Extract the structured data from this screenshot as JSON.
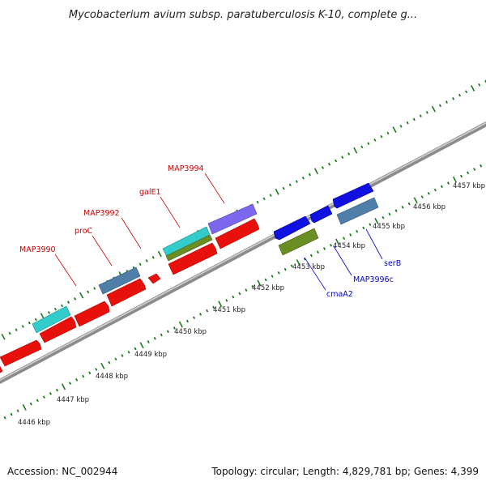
{
  "title": "Mycobacterium avium subsp. paratuberculosis K-10, complete g...",
  "footer": {
    "accession": "Accession: NC_002944",
    "stats": "Topology: circular; Length: 4,829,781 bp; Genes: 4,399"
  },
  "colors": {
    "background": "#ffffff",
    "backbone": "#8c8c8c",
    "tick": "#1d7a1d",
    "forward_label": "#cc0000",
    "reverse_label": "#0000cc"
  },
  "scale": {
    "unit": "kbp",
    "labels": [
      "4446 kbp",
      "4447 kbp",
      "4448 kbp",
      "4449 kbp",
      "4450 kbp",
      "4451 kbp",
      "4452 kbp",
      "4453 kbp",
      "4454 kbp",
      "4455 kbp",
      "4456 kbp",
      "4457 kbp"
    ]
  },
  "labels": {
    "forward": [
      "MAP3990",
      "proC",
      "MAP3992",
      "galE1",
      "MAP3994"
    ],
    "reverse": [
      "cmaA2",
      "MAP3996c",
      "serB"
    ]
  }
}
